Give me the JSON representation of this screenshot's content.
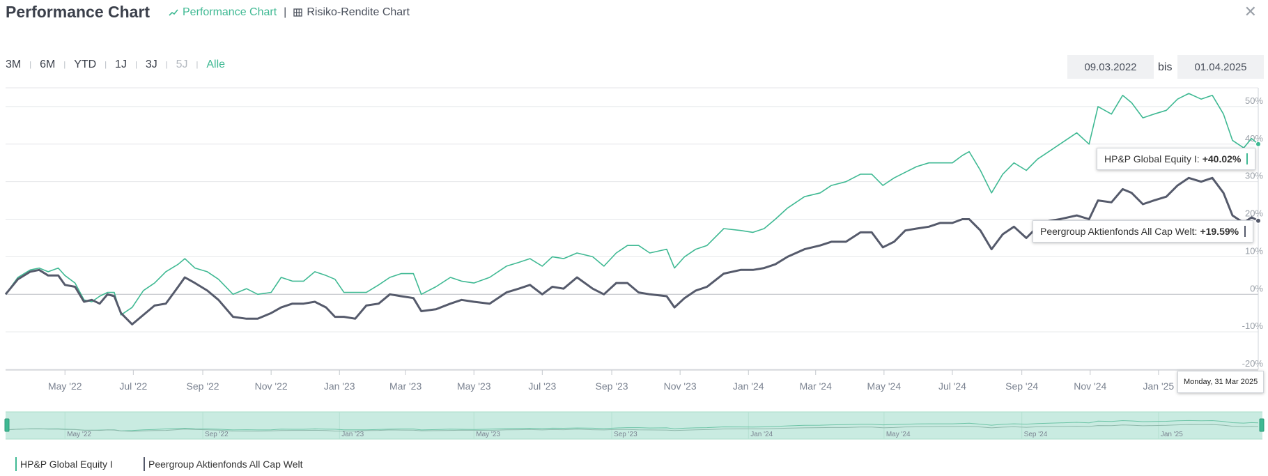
{
  "header": {
    "title": "Performance Chart",
    "tabs": [
      {
        "label": "Performance Chart",
        "icon": "line-chart-icon"
      },
      {
        "label": "Risiko-Rendite Chart",
        "icon": "grid-icon"
      }
    ],
    "close_icon": "close-icon"
  },
  "ranges": [
    {
      "label": "3M",
      "state": "normal"
    },
    {
      "label": "6M",
      "state": "normal"
    },
    {
      "label": "YTD",
      "state": "normal"
    },
    {
      "label": "1J",
      "state": "normal"
    },
    {
      "label": "3J",
      "state": "normal"
    },
    {
      "label": "5J",
      "state": "disabled"
    },
    {
      "label": "Alle",
      "state": "active"
    }
  ],
  "date_range": {
    "from": "09.03.2022",
    "separator": "bis",
    "to": "01.04.2025"
  },
  "tooltips": {
    "series1": {
      "label": "HP&P Global Equity I:",
      "value": "+40.02%"
    },
    "series2": {
      "label": "Peergroup Aktienfonds All Cap Welt:",
      "value": "+19.59%"
    },
    "date": "Monday, 31 Mar 2025"
  },
  "legend": [
    "HP&P Global Equity I",
    "Peergroup Aktienfonds All Cap Welt"
  ],
  "colors": {
    "series1": "#3fb993",
    "series2": "#555a6b",
    "navigator": "#c9ebe1",
    "accent": "#3fb993"
  },
  "chart_data": {
    "type": "line",
    "ylim": [
      -20,
      55
    ],
    "y_unit": "%",
    "yticks": [
      "50%",
      "40%",
      "30%",
      "20%",
      "10%",
      "0%",
      "-10%",
      "-20%"
    ],
    "xticks": [
      "May '22",
      "Jul '22",
      "Sep '22",
      "Nov '22",
      "Jan '23",
      "Mar '23",
      "May '23",
      "Jul '23",
      "Sep '23",
      "Nov '23",
      "Jan '24",
      "Mar '24",
      "May '24",
      "Jul '24",
      "Sep '24",
      "Nov '24",
      "Jan '25"
    ],
    "navigator_ticks": [
      "May '22",
      "Sep '22",
      "Jan '23",
      "May '23",
      "Sep '23",
      "Jan '24",
      "May '24",
      "Sep '24",
      "Jan '25"
    ],
    "series": [
      {
        "name": "HP&P Global Equity I",
        "points": [
          [
            "2022-03-09",
            0
          ],
          [
            "2022-03-20",
            4.5
          ],
          [
            "2022-03-31",
            6.5
          ],
          [
            "2022-04-08",
            7
          ],
          [
            "2022-04-16",
            6
          ],
          [
            "2022-04-25",
            7
          ],
          [
            "2022-05-01",
            5
          ],
          [
            "2022-05-10",
            3
          ],
          [
            "2022-05-18",
            -1.5
          ],
          [
            "2022-05-25",
            -2
          ],
          [
            "2022-06-01",
            -0.5
          ],
          [
            "2022-06-08",
            0.5
          ],
          [
            "2022-06-14",
            0.5
          ],
          [
            "2022-06-20",
            -5.5
          ],
          [
            "2022-06-30",
            -3.5
          ],
          [
            "2022-07-10",
            1
          ],
          [
            "2022-07-20",
            3
          ],
          [
            "2022-07-30",
            6
          ],
          [
            "2022-08-10",
            8
          ],
          [
            "2022-08-16",
            9.5
          ],
          [
            "2022-08-25",
            7
          ],
          [
            "2022-09-05",
            6
          ],
          [
            "2022-09-15",
            4
          ],
          [
            "2022-09-28",
            0
          ],
          [
            "2022-10-10",
            1.5
          ],
          [
            "2022-10-20",
            0
          ],
          [
            "2022-11-01",
            0.5
          ],
          [
            "2022-11-10",
            4.5
          ],
          [
            "2022-11-20",
            3.5
          ],
          [
            "2022-11-30",
            3.5
          ],
          [
            "2022-12-10",
            6
          ],
          [
            "2022-12-20",
            5
          ],
          [
            "2022-12-28",
            4
          ],
          [
            "2023-01-05",
            0.5
          ],
          [
            "2023-01-15",
            0.5
          ],
          [
            "2023-01-25",
            0.5
          ],
          [
            "2023-02-05",
            2.5
          ],
          [
            "2023-02-15",
            4.5
          ],
          [
            "2023-02-25",
            5.5
          ],
          [
            "2023-03-08",
            5.5
          ],
          [
            "2023-03-15",
            0
          ],
          [
            "2023-03-28",
            2
          ],
          [
            "2023-04-10",
            4.5
          ],
          [
            "2023-04-20",
            3.5
          ],
          [
            "2023-05-01",
            3
          ],
          [
            "2023-05-15",
            4.5
          ],
          [
            "2023-05-30",
            7.5
          ],
          [
            "2023-06-10",
            8.5
          ],
          [
            "2023-06-20",
            9.5
          ],
          [
            "2023-07-01",
            7.5
          ],
          [
            "2023-07-10",
            10
          ],
          [
            "2023-07-20",
            9.5
          ],
          [
            "2023-08-01",
            11
          ],
          [
            "2023-08-15",
            10
          ],
          [
            "2023-08-25",
            7.5
          ],
          [
            "2023-09-05",
            11
          ],
          [
            "2023-09-15",
            13
          ],
          [
            "2023-09-25",
            13
          ],
          [
            "2023-10-05",
            11
          ],
          [
            "2023-10-20",
            12
          ],
          [
            "2023-10-27",
            7
          ],
          [
            "2023-11-05",
            10
          ],
          [
            "2023-11-15",
            12
          ],
          [
            "2023-11-25",
            13
          ],
          [
            "2023-12-10",
            17.5
          ],
          [
            "2023-12-25",
            17
          ],
          [
            "2024-01-05",
            16.5
          ],
          [
            "2024-01-15",
            17.5
          ],
          [
            "2024-01-25",
            20
          ],
          [
            "2024-02-05",
            23
          ],
          [
            "2024-02-20",
            26
          ],
          [
            "2024-03-05",
            27
          ],
          [
            "2024-03-15",
            29
          ],
          [
            "2024-03-28",
            30
          ],
          [
            "2024-04-10",
            32
          ],
          [
            "2024-04-20",
            32
          ],
          [
            "2024-04-30",
            29
          ],
          [
            "2024-05-10",
            31
          ],
          [
            "2024-05-20",
            32.5
          ],
          [
            "2024-05-30",
            34
          ],
          [
            "2024-06-10",
            35
          ],
          [
            "2024-06-20",
            35
          ],
          [
            "2024-07-01",
            35
          ],
          [
            "2024-07-10",
            37
          ],
          [
            "2024-07-16",
            38
          ],
          [
            "2024-07-26",
            33
          ],
          [
            "2024-08-05",
            27
          ],
          [
            "2024-08-15",
            32
          ],
          [
            "2024-08-25",
            35
          ],
          [
            "2024-09-05",
            33
          ],
          [
            "2024-09-15",
            36
          ],
          [
            "2024-09-25",
            38
          ],
          [
            "2024-10-05",
            40
          ],
          [
            "2024-10-20",
            43
          ],
          [
            "2024-10-31",
            40
          ],
          [
            "2024-11-08",
            50
          ],
          [
            "2024-11-20",
            48
          ],
          [
            "2024-11-30",
            53
          ],
          [
            "2024-12-08",
            51
          ],
          [
            "2024-12-18",
            47
          ],
          [
            "2024-12-28",
            48
          ],
          [
            "2025-01-08",
            49
          ],
          [
            "2025-01-18",
            52
          ],
          [
            "2025-01-28",
            53.5
          ],
          [
            "2025-02-08",
            52
          ],
          [
            "2025-02-18",
            53
          ],
          [
            "2025-02-28",
            48
          ],
          [
            "2025-03-08",
            41
          ],
          [
            "2025-03-18",
            39
          ],
          [
            "2025-03-25",
            41.5
          ],
          [
            "2025-03-31",
            40.02
          ]
        ]
      },
      {
        "name": "Peergroup Aktienfonds All Cap Welt",
        "points": [
          [
            "2022-03-09",
            0
          ],
          [
            "2022-03-20",
            4
          ],
          [
            "2022-03-31",
            6
          ],
          [
            "2022-04-08",
            6.5
          ],
          [
            "2022-04-16",
            5
          ],
          [
            "2022-04-25",
            5
          ],
          [
            "2022-05-01",
            2.5
          ],
          [
            "2022-05-10",
            2
          ],
          [
            "2022-05-18",
            -2
          ],
          [
            "2022-05-25",
            -1.5
          ],
          [
            "2022-06-01",
            -2.5
          ],
          [
            "2022-06-08",
            0
          ],
          [
            "2022-06-14",
            -0.5
          ],
          [
            "2022-06-20",
            -5
          ],
          [
            "2022-06-30",
            -8
          ],
          [
            "2022-07-10",
            -5.5
          ],
          [
            "2022-07-20",
            -3
          ],
          [
            "2022-07-30",
            -2.5
          ],
          [
            "2022-08-10",
            2
          ],
          [
            "2022-08-16",
            4.5
          ],
          [
            "2022-08-25",
            3
          ],
          [
            "2022-09-05",
            1
          ],
          [
            "2022-09-15",
            -1.5
          ],
          [
            "2022-09-28",
            -6
          ],
          [
            "2022-10-10",
            -6.5
          ],
          [
            "2022-10-20",
            -6.5
          ],
          [
            "2022-11-01",
            -5
          ],
          [
            "2022-11-10",
            -3.5
          ],
          [
            "2022-11-20",
            -2.5
          ],
          [
            "2022-11-30",
            -2.5
          ],
          [
            "2022-12-10",
            -2
          ],
          [
            "2022-12-20",
            -3.5
          ],
          [
            "2022-12-28",
            -6
          ],
          [
            "2023-01-05",
            -6
          ],
          [
            "2023-01-15",
            -6.5
          ],
          [
            "2023-01-25",
            -3
          ],
          [
            "2023-02-05",
            -2.5
          ],
          [
            "2023-02-15",
            0
          ],
          [
            "2023-02-25",
            -0.5
          ],
          [
            "2023-03-08",
            -1
          ],
          [
            "2023-03-15",
            -4.5
          ],
          [
            "2023-03-28",
            -4
          ],
          [
            "2023-04-10",
            -2.5
          ],
          [
            "2023-04-20",
            -1.5
          ],
          [
            "2023-05-01",
            -2
          ],
          [
            "2023-05-15",
            -2.5
          ],
          [
            "2023-05-30",
            0.5
          ],
          [
            "2023-06-10",
            1.5
          ],
          [
            "2023-06-20",
            2.5
          ],
          [
            "2023-07-01",
            0
          ],
          [
            "2023-07-10",
            2
          ],
          [
            "2023-07-20",
            1.5
          ],
          [
            "2023-08-01",
            4.5
          ],
          [
            "2023-08-15",
            1.5
          ],
          [
            "2023-08-25",
            0
          ],
          [
            "2023-09-05",
            3
          ],
          [
            "2023-09-15",
            3
          ],
          [
            "2023-09-25",
            0.5
          ],
          [
            "2023-10-05",
            0
          ],
          [
            "2023-10-20",
            -0.5
          ],
          [
            "2023-10-27",
            -3.5
          ],
          [
            "2023-11-05",
            -1
          ],
          [
            "2023-11-15",
            1
          ],
          [
            "2023-11-25",
            2
          ],
          [
            "2023-12-10",
            5.5
          ],
          [
            "2023-12-25",
            6.5
          ],
          [
            "2024-01-05",
            6.5
          ],
          [
            "2024-01-15",
            7
          ],
          [
            "2024-01-25",
            8
          ],
          [
            "2024-02-05",
            10
          ],
          [
            "2024-02-20",
            12
          ],
          [
            "2024-03-05",
            13
          ],
          [
            "2024-03-15",
            14
          ],
          [
            "2024-03-28",
            14
          ],
          [
            "2024-04-10",
            16.5
          ],
          [
            "2024-04-20",
            16.5
          ],
          [
            "2024-04-30",
            12.5
          ],
          [
            "2024-05-10",
            14
          ],
          [
            "2024-05-20",
            17
          ],
          [
            "2024-05-30",
            17.5
          ],
          [
            "2024-06-10",
            18
          ],
          [
            "2024-06-20",
            19
          ],
          [
            "2024-07-01",
            19
          ],
          [
            "2024-07-10",
            20
          ],
          [
            "2024-07-16",
            20
          ],
          [
            "2024-07-26",
            17
          ],
          [
            "2024-08-05",
            12
          ],
          [
            "2024-08-15",
            16
          ],
          [
            "2024-08-25",
            18
          ],
          [
            "2024-09-05",
            15
          ],
          [
            "2024-09-15",
            18
          ],
          [
            "2024-09-25",
            19.5
          ],
          [
            "2024-10-05",
            20
          ],
          [
            "2024-10-20",
            21
          ],
          [
            "2024-10-31",
            20
          ],
          [
            "2024-11-08",
            25
          ],
          [
            "2024-11-20",
            24.5
          ],
          [
            "2024-11-30",
            28
          ],
          [
            "2024-12-08",
            27
          ],
          [
            "2024-12-18",
            24
          ],
          [
            "2024-12-28",
            25
          ],
          [
            "2025-01-08",
            26
          ],
          [
            "2025-01-18",
            29
          ],
          [
            "2025-01-28",
            31
          ],
          [
            "2025-02-08",
            30
          ],
          [
            "2025-02-18",
            31
          ],
          [
            "2025-02-28",
            27
          ],
          [
            "2025-03-08",
            21
          ],
          [
            "2025-03-18",
            19
          ],
          [
            "2025-03-25",
            20.5
          ],
          [
            "2025-03-31",
            19.59
          ]
        ]
      }
    ]
  }
}
